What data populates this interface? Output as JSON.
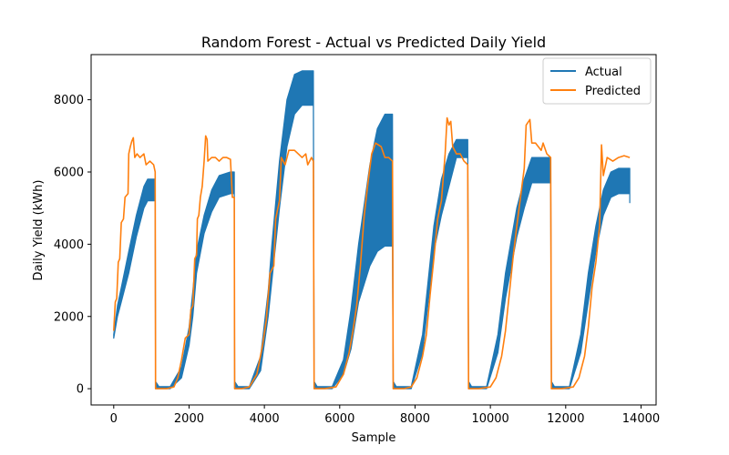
{
  "chart_data": {
    "type": "line",
    "title": "Random Forest - Actual vs Predicted Daily Yield",
    "xlabel": "Sample",
    "ylabel": "Daily Yield (kWh)",
    "xlim": [
      -600,
      14400
    ],
    "ylim": [
      -450,
      9250
    ],
    "xticks": [
      0,
      2000,
      4000,
      6000,
      8000,
      10000,
      12000,
      14000
    ],
    "yticks": [
      0,
      2000,
      4000,
      6000,
      8000
    ],
    "legend": {
      "position": "top-right",
      "entries": [
        "Actual",
        "Predicted"
      ]
    },
    "colors": {
      "actual": "#1f77b4",
      "predicted": "#ff7f0e"
    },
    "series": [
      {
        "name": "Actual",
        "style": "band",
        "lower": [
          [
            0,
            1400
          ],
          [
            100,
            2000
          ],
          [
            200,
            2400
          ],
          [
            400,
            3200
          ],
          [
            600,
            4200
          ],
          [
            800,
            5000
          ],
          [
            900,
            5200
          ],
          [
            1100,
            5200
          ],
          [
            1110,
            0
          ],
          [
            1200,
            0
          ],
          [
            1500,
            0
          ],
          [
            1800,
            300
          ],
          [
            2000,
            1200
          ],
          [
            2100,
            2000
          ],
          [
            2200,
            3200
          ],
          [
            2400,
            4300
          ],
          [
            2600,
            4900
          ],
          [
            2800,
            5300
          ],
          [
            3100,
            5400
          ],
          [
            3200,
            5400
          ],
          [
            3210,
            0
          ],
          [
            3300,
            0
          ],
          [
            3600,
            0
          ],
          [
            3900,
            500
          ],
          [
            4100,
            2000
          ],
          [
            4200,
            3000
          ],
          [
            4400,
            5000
          ],
          [
            4600,
            6700
          ],
          [
            4800,
            7600
          ],
          [
            5000,
            7850
          ],
          [
            5300,
            7850
          ],
          [
            5320,
            0
          ],
          [
            5400,
            0
          ],
          [
            5800,
            0
          ],
          [
            6100,
            400
          ],
          [
            6300,
            1100
          ],
          [
            6500,
            2400
          ],
          [
            6800,
            3400
          ],
          [
            7000,
            3800
          ],
          [
            7200,
            3950
          ],
          [
            7400,
            3950
          ],
          [
            7420,
            0
          ],
          [
            7500,
            0
          ],
          [
            7900,
            0
          ],
          [
            8200,
            1000
          ],
          [
            8500,
            3800
          ],
          [
            8700,
            4800
          ],
          [
            8900,
            5600
          ],
          [
            9100,
            6400
          ],
          [
            9400,
            6400
          ],
          [
            9420,
            0
          ],
          [
            9500,
            0
          ],
          [
            9900,
            0
          ],
          [
            10200,
            1000
          ],
          [
            10400,
            2500
          ],
          [
            10700,
            4200
          ],
          [
            10900,
            5000
          ],
          [
            11100,
            5700
          ],
          [
            11400,
            5700
          ],
          [
            11600,
            5700
          ],
          [
            11620,
            0
          ],
          [
            11700,
            0
          ],
          [
            12100,
            0
          ],
          [
            12400,
            1000
          ],
          [
            12600,
            2400
          ],
          [
            12800,
            3800
          ],
          [
            13000,
            4800
          ],
          [
            13200,
            5300
          ],
          [
            13400,
            5400
          ],
          [
            13700,
            5400
          ],
          [
            13700,
            5150
          ]
        ],
        "upper": [
          [
            0,
            1500
          ],
          [
            100,
            2300
          ],
          [
            200,
            2800
          ],
          [
            400,
            3800
          ],
          [
            600,
            4800
          ],
          [
            800,
            5600
          ],
          [
            900,
            5800
          ],
          [
            1100,
            5800
          ],
          [
            1110,
            200
          ],
          [
            1200,
            60
          ],
          [
            1500,
            60
          ],
          [
            1800,
            600
          ],
          [
            2000,
            1700
          ],
          [
            2100,
            2700
          ],
          [
            2200,
            3800
          ],
          [
            2400,
            4800
          ],
          [
            2600,
            5500
          ],
          [
            2800,
            5900
          ],
          [
            3100,
            6000
          ],
          [
            3200,
            6000
          ],
          [
            3210,
            200
          ],
          [
            3300,
            60
          ],
          [
            3600,
            60
          ],
          [
            3900,
            900
          ],
          [
            4100,
            2700
          ],
          [
            4200,
            4000
          ],
          [
            4400,
            6300
          ],
          [
            4600,
            8000
          ],
          [
            4800,
            8700
          ],
          [
            5000,
            8800
          ],
          [
            5300,
            8800
          ],
          [
            5320,
            200
          ],
          [
            5400,
            60
          ],
          [
            5800,
            60
          ],
          [
            6100,
            800
          ],
          [
            6300,
            2200
          ],
          [
            6500,
            4000
          ],
          [
            6800,
            6200
          ],
          [
            7000,
            7200
          ],
          [
            7200,
            7600
          ],
          [
            7400,
            7600
          ],
          [
            7420,
            200
          ],
          [
            7500,
            60
          ],
          [
            7900,
            60
          ],
          [
            8200,
            1500
          ],
          [
            8500,
            4500
          ],
          [
            8700,
            5800
          ],
          [
            8900,
            6500
          ],
          [
            9100,
            6900
          ],
          [
            9400,
            6900
          ],
          [
            9420,
            200
          ],
          [
            9500,
            60
          ],
          [
            9900,
            60
          ],
          [
            10200,
            1500
          ],
          [
            10400,
            3200
          ],
          [
            10700,
            5000
          ],
          [
            10900,
            5800
          ],
          [
            11100,
            6400
          ],
          [
            11400,
            6400
          ],
          [
            11600,
            6400
          ],
          [
            11620,
            200
          ],
          [
            11700,
            60
          ],
          [
            12100,
            60
          ],
          [
            12400,
            1500
          ],
          [
            12600,
            3200
          ],
          [
            12800,
            4500
          ],
          [
            13000,
            5500
          ],
          [
            13200,
            6000
          ],
          [
            13400,
            6100
          ],
          [
            13700,
            6100
          ],
          [
            13700,
            6100
          ]
        ]
      },
      {
        "name": "Predicted",
        "style": "line",
        "points": [
          [
            0,
            1600
          ],
          [
            40,
            2400
          ],
          [
            80,
            2500
          ],
          [
            120,
            3500
          ],
          [
            160,
            3600
          ],
          [
            200,
            4600
          ],
          [
            260,
            4700
          ],
          [
            300,
            5300
          ],
          [
            380,
            5400
          ],
          [
            400,
            6500
          ],
          [
            440,
            6700
          ],
          [
            480,
            6850
          ],
          [
            520,
            6950
          ],
          [
            560,
            6400
          ],
          [
            620,
            6500
          ],
          [
            700,
            6400
          ],
          [
            800,
            6500
          ],
          [
            860,
            6200
          ],
          [
            960,
            6300
          ],
          [
            1060,
            6200
          ],
          [
            1100,
            6000
          ],
          [
            1110,
            0
          ],
          [
            1400,
            0
          ],
          [
            1600,
            50
          ],
          [
            1700,
            300
          ],
          [
            1800,
            800
          ],
          [
            1900,
            1400
          ],
          [
            2000,
            1500
          ],
          [
            2050,
            2200
          ],
          [
            2100,
            2300
          ],
          [
            2150,
            3600
          ],
          [
            2200,
            3700
          ],
          [
            2220,
            4700
          ],
          [
            2260,
            4800
          ],
          [
            2300,
            5300
          ],
          [
            2350,
            5600
          ],
          [
            2400,
            6300
          ],
          [
            2440,
            7000
          ],
          [
            2480,
            6900
          ],
          [
            2500,
            6300
          ],
          [
            2600,
            6400
          ],
          [
            2700,
            6400
          ],
          [
            2800,
            6300
          ],
          [
            2900,
            6400
          ],
          [
            3000,
            6400
          ],
          [
            3100,
            6350
          ],
          [
            3150,
            5300
          ],
          [
            3200,
            5300
          ],
          [
            3210,
            0
          ],
          [
            3400,
            0
          ],
          [
            3600,
            50
          ],
          [
            3800,
            400
          ],
          [
            3950,
            1200
          ],
          [
            4050,
            1900
          ],
          [
            4150,
            3200
          ],
          [
            4250,
            3400
          ],
          [
            4300,
            4700
          ],
          [
            4400,
            5200
          ],
          [
            4450,
            6400
          ],
          [
            4550,
            6200
          ],
          [
            4650,
            6600
          ],
          [
            4800,
            6600
          ],
          [
            4900,
            6500
          ],
          [
            5000,
            6400
          ],
          [
            5100,
            6500
          ],
          [
            5150,
            6200
          ],
          [
            5250,
            6400
          ],
          [
            5300,
            6300
          ],
          [
            5320,
            0
          ],
          [
            5600,
            0
          ],
          [
            5900,
            50
          ],
          [
            6100,
            400
          ],
          [
            6250,
            1000
          ],
          [
            6350,
            1600
          ],
          [
            6450,
            2300
          ],
          [
            6550,
            3400
          ],
          [
            6650,
            4800
          ],
          [
            6750,
            5700
          ],
          [
            6850,
            6500
          ],
          [
            6950,
            6800
          ],
          [
            7100,
            6700
          ],
          [
            7200,
            6400
          ],
          [
            7300,
            6400
          ],
          [
            7400,
            6300
          ],
          [
            7420,
            0
          ],
          [
            7700,
            0
          ],
          [
            7900,
            50
          ],
          [
            8050,
            300
          ],
          [
            8200,
            900
          ],
          [
            8300,
            1500
          ],
          [
            8400,
            2600
          ],
          [
            8500,
            3600
          ],
          [
            8600,
            4700
          ],
          [
            8700,
            5200
          ],
          [
            8800,
            6500
          ],
          [
            8850,
            7500
          ],
          [
            8900,
            7300
          ],
          [
            8950,
            7400
          ],
          [
            9000,
            6700
          ],
          [
            9100,
            6500
          ],
          [
            9200,
            6500
          ],
          [
            9300,
            6300
          ],
          [
            9400,
            6200
          ],
          [
            9420,
            0
          ],
          [
            9700,
            0
          ],
          [
            10000,
            50
          ],
          [
            10150,
            300
          ],
          [
            10300,
            900
          ],
          [
            10400,
            1600
          ],
          [
            10500,
            2600
          ],
          [
            10600,
            3600
          ],
          [
            10700,
            4500
          ],
          [
            10800,
            5300
          ],
          [
            10900,
            6100
          ],
          [
            10950,
            7300
          ],
          [
            11050,
            7450
          ],
          [
            11100,
            6800
          ],
          [
            11200,
            6800
          ],
          [
            11350,
            6600
          ],
          [
            11400,
            6800
          ],
          [
            11500,
            6500
          ],
          [
            11600,
            6400
          ],
          [
            11620,
            0
          ],
          [
            11900,
            0
          ],
          [
            12200,
            50
          ],
          [
            12350,
            300
          ],
          [
            12500,
            900
          ],
          [
            12600,
            1700
          ],
          [
            12700,
            2800
          ],
          [
            12800,
            3500
          ],
          [
            12900,
            4500
          ],
          [
            12950,
            6750
          ],
          [
            13000,
            5900
          ],
          [
            13100,
            6400
          ],
          [
            13250,
            6300
          ],
          [
            13400,
            6400
          ],
          [
            13550,
            6450
          ],
          [
            13700,
            6400
          ]
        ]
      }
    ]
  }
}
